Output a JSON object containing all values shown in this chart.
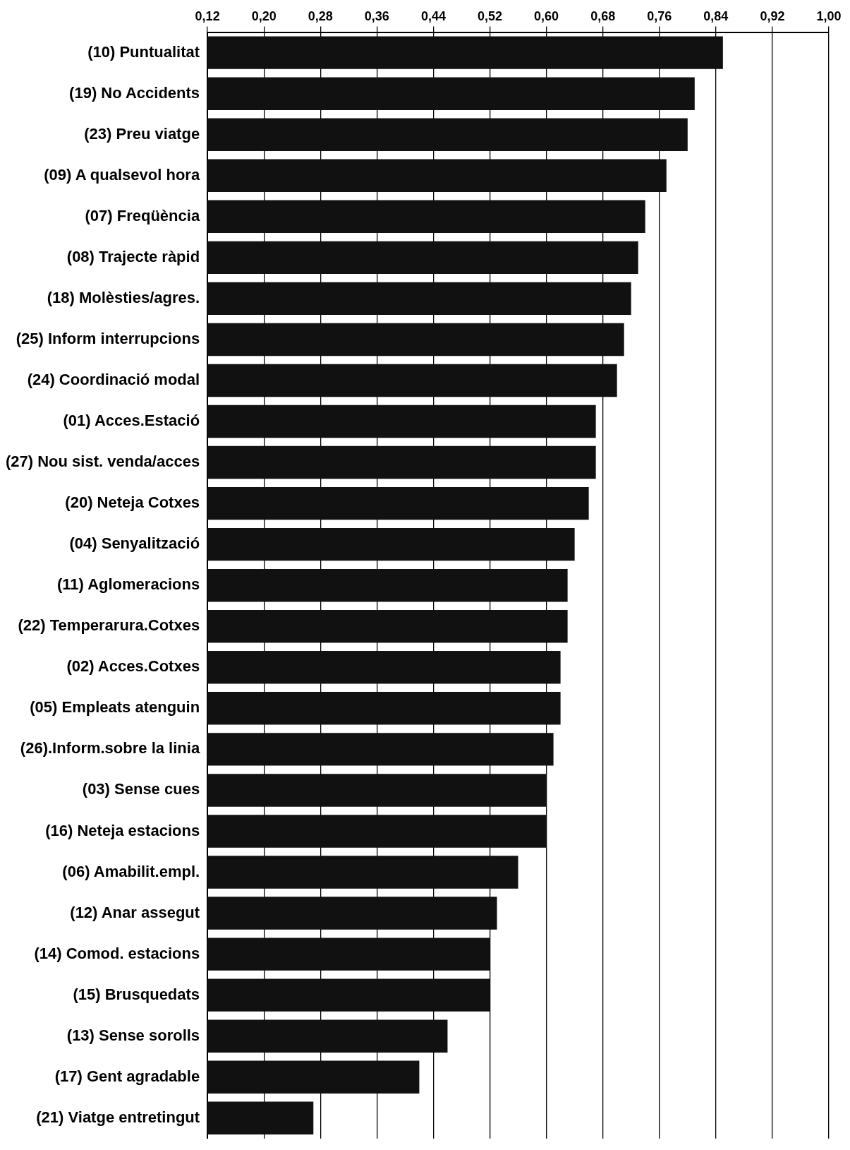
{
  "chart_data": {
    "type": "bar",
    "orientation": "horizontal",
    "color": "#111111",
    "grid": "x",
    "categories": [
      "(10) Puntualitat",
      "(19) No Accidents",
      "(23) Preu viatge",
      "(09) A qualsevol hora",
      "(07) Freqüència",
      "(08) Trajecte ràpid",
      "(18) Molèsties/agres.",
      "(25) Inform interrupcions",
      "(24) Coordinació modal",
      "(01) Acces.Estació",
      "(27) Nou sist. venda/acces",
      "(20) Neteja Cotxes",
      "(04) Senyalització",
      "(11) Aglomeracions",
      "(22) Temperarura.Cotxes",
      "(02) Acces.Cotxes",
      "(05) Empleats atenguin",
      "(26).Inform.sobre la linia",
      "(03) Sense cues",
      "(16) Neteja estacions",
      "(06) Amabilit.empl.",
      "(12) Anar assegut",
      "(14) Comod. estacions",
      "(15) Brusquedats",
      "(13) Sense sorolls",
      "(17) Gent agradable",
      "(21) Viatge entretingut"
    ],
    "values": [
      0.85,
      0.81,
      0.8,
      0.77,
      0.74,
      0.73,
      0.72,
      0.71,
      0.7,
      0.67,
      0.67,
      0.66,
      0.64,
      0.63,
      0.63,
      0.62,
      0.62,
      0.61,
      0.6,
      0.6,
      0.56,
      0.53,
      0.52,
      0.52,
      0.46,
      0.42,
      0.27
    ],
    "xlim": [
      0.12,
      1.0
    ],
    "xticks": [
      {
        "value": 0.12,
        "label": "0,12"
      },
      {
        "value": 0.2,
        "label": "0,20"
      },
      {
        "value": 0.28,
        "label": "0,28"
      },
      {
        "value": 0.36,
        "label": "0,36"
      },
      {
        "value": 0.44,
        "label": "0,44"
      },
      {
        "value": 0.52,
        "label": "0,52"
      },
      {
        "value": 0.6,
        "label": "0,60"
      },
      {
        "value": 0.68,
        "label": "0,68"
      },
      {
        "value": 0.76,
        "label": "0,76"
      },
      {
        "value": 0.84,
        "label": "0,84"
      },
      {
        "value": 0.92,
        "label": "0,92"
      },
      {
        "value": 1.0,
        "label": "1,00"
      }
    ]
  }
}
